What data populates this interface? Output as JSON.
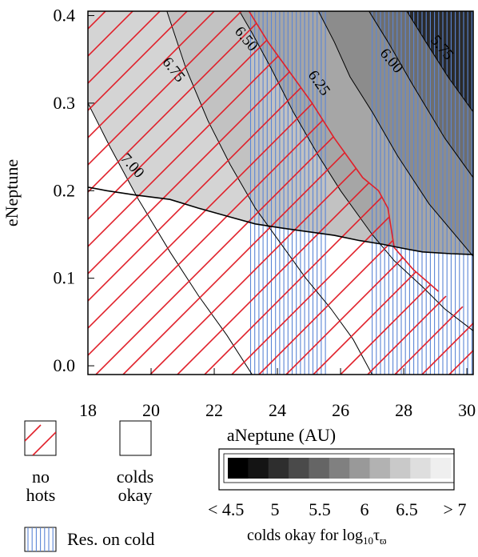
{
  "chart_data": {
    "type": "contour",
    "xlabel": "aNeptune (AU)",
    "ylabel": "eNeptune",
    "xlim": [
      18,
      30.2
    ],
    "ylim": [
      -0.01,
      0.405
    ],
    "x_ticks": [
      18,
      20,
      22,
      24,
      26,
      28,
      30
    ],
    "x_tick_labels": [
      "18",
      "20",
      "22",
      "24",
      "26",
      "28",
      "30"
    ],
    "y_ticks": [
      0.0,
      0.1,
      0.2,
      0.3,
      0.4
    ],
    "y_tick_labels": [
      "0.0",
      "0.1",
      "0.2",
      "0.3",
      "0.4"
    ],
    "contour_labels": [
      "7.00",
      "6.75",
      "6.50",
      "6.25",
      "6.00",
      "5.75"
    ],
    "contours": [
      {
        "level": 5.75,
        "label": "5.75",
        "points": [
          [
            28.1,
            0.405
          ],
          [
            28.7,
            0.37
          ],
          [
            29.4,
            0.33
          ],
          [
            30.2,
            0.29
          ]
        ]
      },
      {
        "level": 6.0,
        "label": "6.00",
        "points": [
          [
            26.9,
            0.405
          ],
          [
            27.5,
            0.37
          ],
          [
            28.3,
            0.32
          ],
          [
            29.3,
            0.26
          ],
          [
            30.2,
            0.215
          ]
        ]
      },
      {
        "level": 6.25,
        "label": "6.25",
        "points": [
          [
            25.3,
            0.405
          ],
          [
            25.8,
            0.37
          ],
          [
            26.3,
            0.33
          ],
          [
            27.0,
            0.29
          ],
          [
            27.8,
            0.24
          ],
          [
            28.8,
            0.185
          ],
          [
            30.2,
            0.125
          ]
        ]
      },
      {
        "level": 6.5,
        "label": "6.50",
        "points": [
          [
            22.8,
            0.405
          ],
          [
            23.2,
            0.38
          ],
          [
            23.8,
            0.34
          ],
          [
            24.5,
            0.29
          ],
          [
            25.3,
            0.24
          ],
          [
            26.0,
            0.2
          ],
          [
            27.0,
            0.15
          ],
          [
            27.7,
            0.12
          ],
          [
            28.6,
            0.09
          ],
          [
            29.3,
            0.065
          ],
          [
            30.2,
            0.04
          ]
        ]
      },
      {
        "level": 6.75,
        "label": "6.75",
        "points": [
          [
            20.5,
            0.405
          ],
          [
            21.1,
            0.34
          ],
          [
            21.8,
            0.28
          ],
          [
            22.5,
            0.23
          ],
          [
            23.3,
            0.18
          ],
          [
            24.2,
            0.135
          ],
          [
            24.9,
            0.1
          ],
          [
            25.7,
            0.065
          ],
          [
            26.4,
            0.03
          ],
          [
            27.0,
            -0.01
          ]
        ]
      },
      {
        "level": 7.0,
        "label": "7.00",
        "points": [
          [
            18.0,
            0.3
          ],
          [
            18.7,
            0.25
          ],
          [
            19.6,
            0.19
          ],
          [
            20.6,
            0.13
          ],
          [
            21.5,
            0.08
          ],
          [
            22.4,
            0.035
          ],
          [
            23.2,
            -0.01
          ]
        ]
      }
    ],
    "shading_levels": [
      {
        "region": 1,
        "color": "#f0f0f0"
      },
      {
        "region": 2,
        "color": "#d4d4d4"
      },
      {
        "region": 3,
        "color": "#c2c2c2"
      },
      {
        "region": 4,
        "color": "#a6a6a6"
      },
      {
        "region": 5,
        "color": "#8c8c8c"
      },
      {
        "region": 6,
        "color": "#6e6e6e"
      },
      {
        "region": 7,
        "color": "#2a2a2a"
      }
    ],
    "colds_okay_boundary": [
      [
        18,
        0.204
      ],
      [
        18.6,
        0.2
      ],
      [
        19.5,
        0.195
      ],
      [
        20.6,
        0.19
      ],
      [
        21.5,
        0.18
      ],
      [
        22.5,
        0.17
      ],
      [
        23.3,
        0.162
      ],
      [
        24.2,
        0.157
      ],
      [
        25.0,
        0.153
      ],
      [
        25.8,
        0.149
      ],
      [
        26.6,
        0.143
      ],
      [
        27.3,
        0.139
      ],
      [
        28.0,
        0.134
      ],
      [
        28.6,
        0.13
      ],
      [
        29.5,
        0.128
      ],
      [
        30.2,
        0.127
      ]
    ],
    "no_hots_region_boundary": [
      [
        18,
        0.405
      ],
      [
        23.1,
        0.405
      ],
      [
        23.7,
        0.37
      ],
      [
        24.3,
        0.34
      ],
      [
        25.1,
        0.3
      ],
      [
        25.8,
        0.26
      ],
      [
        26.3,
        0.235
      ],
      [
        26.7,
        0.215
      ],
      [
        27.2,
        0.2
      ],
      [
        27.5,
        0.18
      ],
      [
        27.7,
        0.135
      ],
      [
        28.3,
        0.11
      ],
      [
        29.1,
        0.085
      ],
      [
        30.2,
        0.06
      ],
      [
        30.2,
        -0.01
      ],
      [
        18,
        -0.01
      ]
    ],
    "resonance_x_bands": [
      [
        23.15,
        25.6
      ],
      [
        27.0,
        30.2
      ]
    ],
    "legend": {
      "no_hots": "no\nhots",
      "colds_okay": "colds\nokay",
      "res_on_cold": "Res. on cold",
      "colorbar_title": "colds okay for log10 τϖ",
      "colorbar_ticks": [
        "< 4.5",
        "5",
        "5.5",
        "6",
        "6.5",
        "> 7"
      ],
      "colorbar_colors": [
        "#000000",
        "#141414",
        "#2e2e2e",
        "#4a4a4a",
        "#656565",
        "#808080",
        "#999999",
        "#b2b2b2",
        "#c9c9c9",
        "#dedede",
        "#efefef"
      ]
    }
  },
  "labels": {
    "no_hots_1": "no",
    "no_hots_2": "hots",
    "colds_1": "colds",
    "colds_2": "okay",
    "res_on_cold": "Res. on cold",
    "colorbar_title_main": "colds okay for log",
    "colorbar_title_sub": "10",
    "colorbar_title_tau": "τ",
    "colorbar_title_varpi": "ϖ",
    "cb_tick_0": "< 4.5",
    "cb_tick_1": "5",
    "cb_tick_2": "5.5",
    "cb_tick_3": "6",
    "cb_tick_4": "6.5",
    "cb_tick_5": "> 7",
    "xlabel": "aNeptune (AU)",
    "ylabel": "eNeptune"
  }
}
